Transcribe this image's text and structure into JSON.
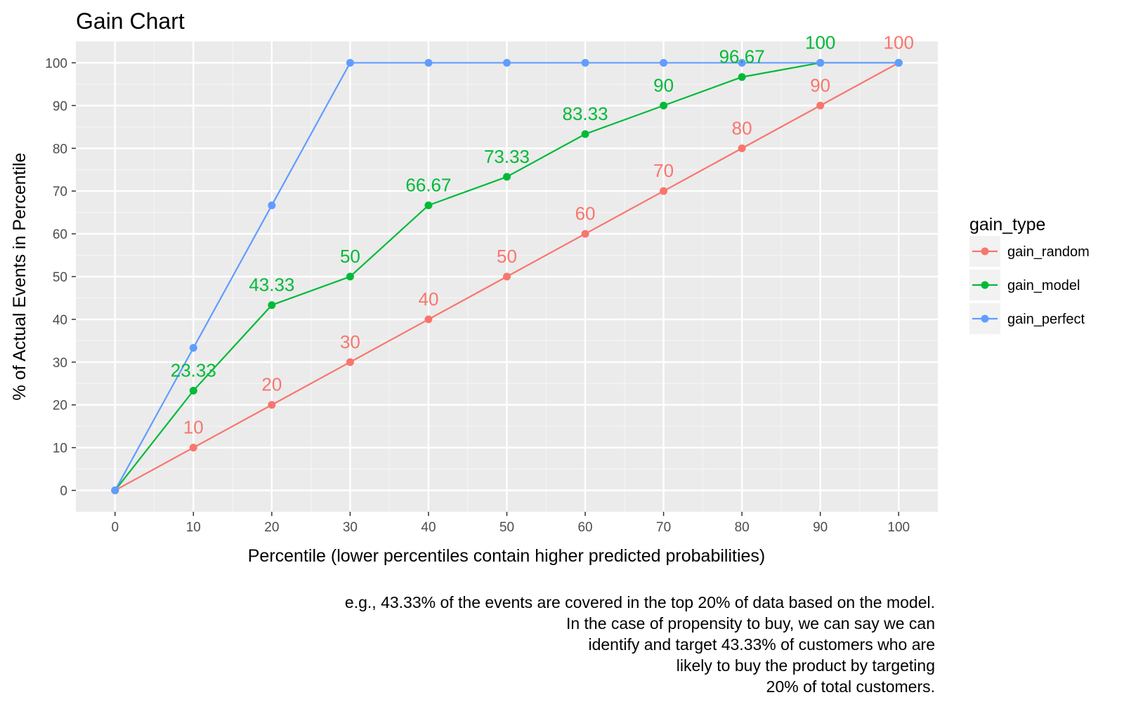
{
  "chart_data": {
    "type": "line",
    "title": "Gain Chart",
    "xlabel": "Percentile (lower percentiles contain higher predicted probabilities)",
    "ylabel": "% of Actual Events in Percentile",
    "x": [
      0,
      10,
      20,
      30,
      40,
      50,
      60,
      70,
      80,
      90,
      100
    ],
    "xlim": [
      -5,
      105
    ],
    "ylim": [
      -5,
      105
    ],
    "x_ticks": [
      "0",
      "10",
      "20",
      "30",
      "40",
      "50",
      "60",
      "70",
      "80",
      "90",
      "100"
    ],
    "y_ticks": [
      "0",
      "10",
      "20",
      "30",
      "40",
      "50",
      "60",
      "70",
      "80",
      "90",
      "100"
    ],
    "grid": true,
    "legend_title": "gain_type",
    "legend_position": "right",
    "series": [
      {
        "name": "gain_random",
        "color": "#F8766D",
        "values": [
          0,
          10,
          20,
          30,
          40,
          50,
          60,
          70,
          80,
          90,
          100
        ],
        "labels": [
          "",
          "10",
          "20",
          "30",
          "40",
          "50",
          "60",
          "70",
          "80",
          "90",
          "100"
        ]
      },
      {
        "name": "gain_model",
        "color": "#00BA38",
        "values": [
          0,
          23.33,
          43.33,
          50,
          66.67,
          73.33,
          83.33,
          90,
          96.67,
          100,
          100
        ],
        "labels": [
          "",
          "23.33",
          "43.33",
          "50",
          "66.67",
          "73.33",
          "83.33",
          "90",
          "96.67",
          "100",
          ""
        ]
      },
      {
        "name": "gain_perfect",
        "color": "#619CFF",
        "values": [
          0,
          33.33,
          66.67,
          100,
          100,
          100,
          100,
          100,
          100,
          100,
          100
        ],
        "labels": []
      }
    ],
    "caption": [
      "e.g., 43.33% of the events are covered in the top 20% of data based on the model.",
      "In the case of propensity to buy, we can say we can",
      "identify and target 43.33% of customers who are",
      "likely to buy the product by targeting",
      "20% of total customers."
    ]
  }
}
